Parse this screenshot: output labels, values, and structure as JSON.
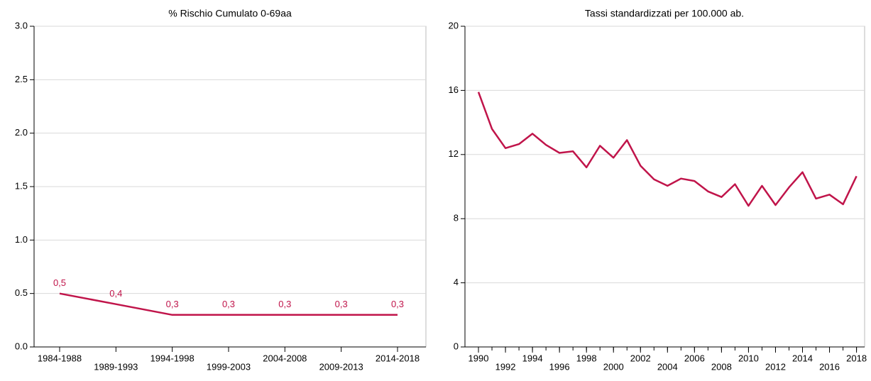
{
  "chart_data": [
    {
      "type": "line",
      "title": "% Rischio Cumulato 0-69aa",
      "categories": [
        "1984-1988",
        "1989-1993",
        "1994-1998",
        "1999-2003",
        "2004-2008",
        "2009-2013",
        "2014-2018"
      ],
      "values": [
        0.5,
        0.4,
        0.3,
        0.3,
        0.3,
        0.3,
        0.3
      ],
      "value_labels": [
        "0,5",
        "0,4",
        "0,3",
        "0,3",
        "0,3",
        "0,3",
        "0,3"
      ],
      "color": "#c0144a",
      "ylim": [
        0,
        3
      ],
      "yticks": [
        {
          "value": 0,
          "label": "0.0"
        },
        0.5,
        {
          "value": 1,
          "label": "1.0"
        },
        1.5,
        {
          "value": 2,
          "label": "2.0"
        },
        2.5,
        {
          "value": 3,
          "label": "3.0"
        }
      ],
      "grid": true
    },
    {
      "type": "line",
      "title": "Tassi standardizzati per 100.000 ab.",
      "x": [
        1990,
        1991,
        1992,
        1993,
        1994,
        1995,
        1996,
        1997,
        1998,
        1999,
        2000,
        2001,
        2002,
        2003,
        2004,
        2005,
        2006,
        2007,
        2008,
        2009,
        2010,
        2011,
        2012,
        2013,
        2014,
        2015,
        2016,
        2017,
        2018
      ],
      "values": [
        15.9,
        13.6,
        12.4,
        12.65,
        13.3,
        12.6,
        12.1,
        12.2,
        11.2,
        12.55,
        11.8,
        12.9,
        11.3,
        10.45,
        10.05,
        10.5,
        10.35,
        9.7,
        9.35,
        10.15,
        8.8,
        10.05,
        8.85,
        9.95,
        10.9,
        9.25,
        9.5,
        8.9,
        10.65
      ],
      "color": "#c0144a",
      "xlim": [
        1989,
        2018.6
      ],
      "xticks": [
        1990,
        1992,
        1994,
        1996,
        1998,
        2000,
        2002,
        2004,
        2006,
        2008,
        2010,
        2012,
        2014,
        2016,
        2018
      ],
      "ylim": [
        0,
        20
      ],
      "yticks": [
        0,
        4,
        8,
        12,
        16,
        20
      ],
      "grid": true
    }
  ]
}
